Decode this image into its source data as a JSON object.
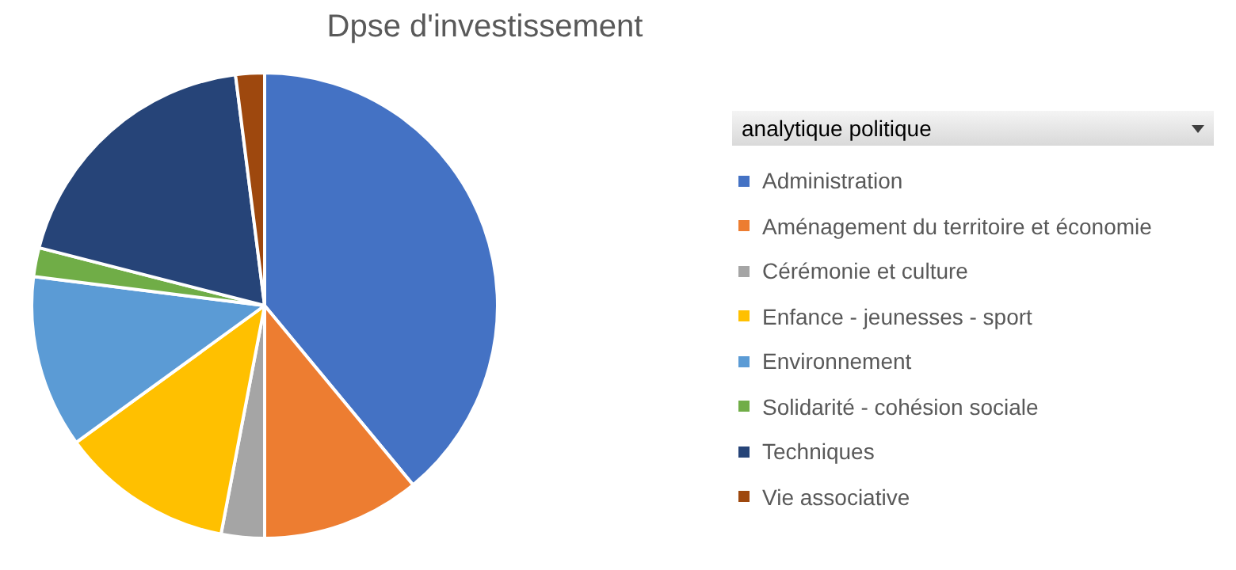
{
  "chart_data": {
    "type": "pie",
    "title": "Dpse d'investissement",
    "legend_title": "analytique politique",
    "legend": "right",
    "categories": [
      "Administration",
      "Aménagement du territoire et économie",
      "Cérémonie et culture",
      "Enfance - jeunesses - sport",
      "Environnement",
      "Solidarité - cohésion sociale",
      "Techniques",
      "Vie associative"
    ],
    "values": [
      39,
      11,
      3,
      12,
      12,
      2,
      19,
      2
    ],
    "colors": [
      "#4472c4",
      "#ed7d31",
      "#a5a5a5",
      "#ffc000",
      "#5b9bd5",
      "#70ad47",
      "#264478",
      "#9e480e"
    ]
  }
}
